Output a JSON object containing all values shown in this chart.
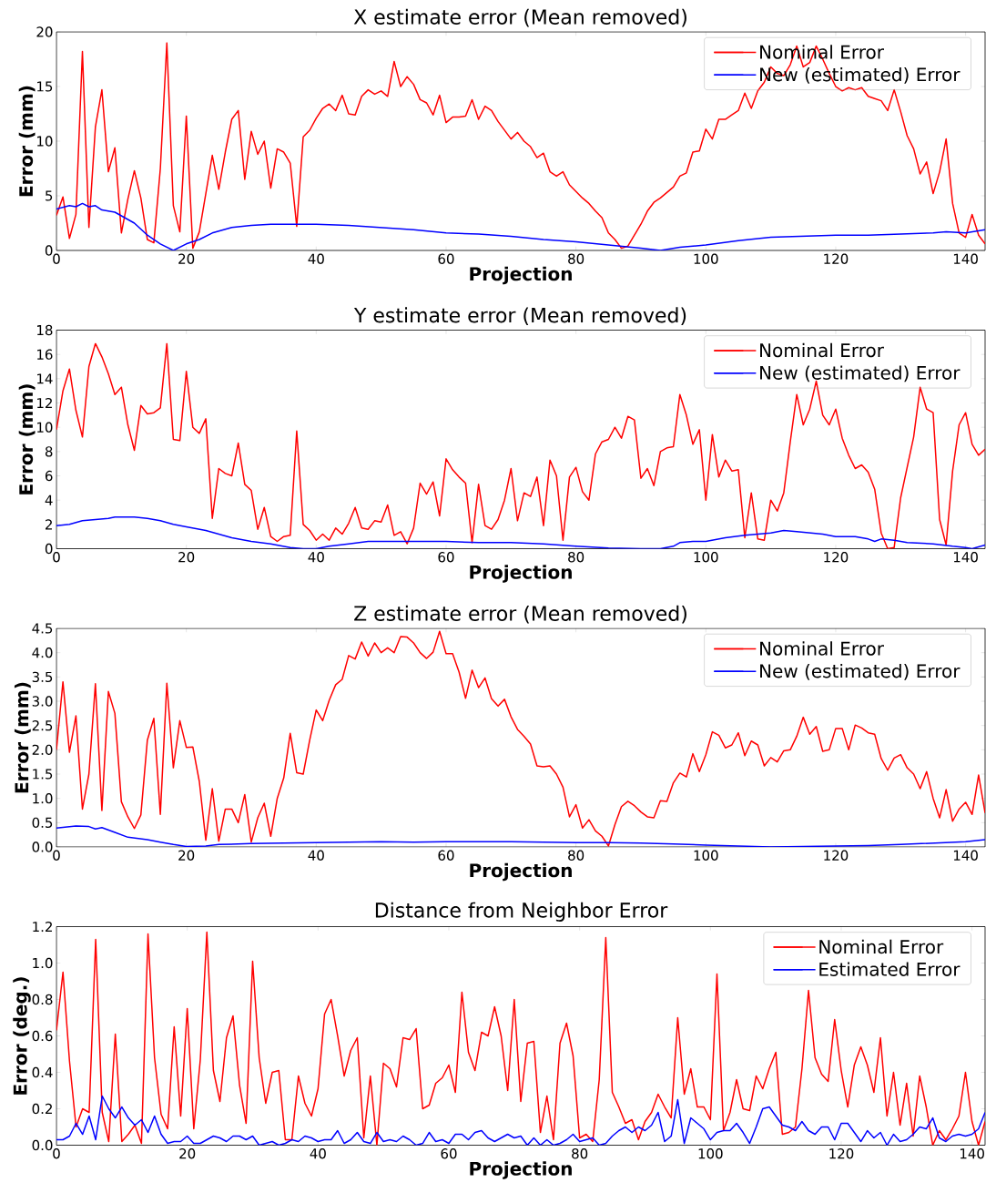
{
  "chart_data": [
    {
      "type": "line",
      "title": "X estimate error (Mean removed)",
      "xlabel": "Projection",
      "ylabel": "Error (mm)",
      "xlim": [
        0,
        143
      ],
      "ylim": [
        0,
        20
      ],
      "xticks": [
        0,
        20,
        40,
        60,
        80,
        100,
        120,
        140
      ],
      "yticks": [
        0,
        5,
        10,
        15,
        20
      ],
      "legend": "top right",
      "x": [
        0,
        1,
        2,
        3,
        4,
        5,
        6,
        7,
        8,
        9,
        10,
        11,
        12,
        13,
        14,
        15,
        16,
        17,
        18,
        19,
        20,
        21,
        22,
        23,
        24,
        25,
        26,
        27,
        28,
        29,
        30,
        31,
        32,
        33,
        34,
        35,
        36,
        37,
        38,
        39,
        40,
        41,
        42,
        43,
        44,
        45,
        46,
        47,
        48,
        49,
        50,
        51,
        52,
        53,
        54,
        55,
        56,
        57,
        58,
        59,
        60,
        61,
        62,
        63,
        64,
        65,
        66,
        67,
        68,
        69,
        70,
        71,
        72,
        73,
        74,
        75,
        76,
        77,
        78,
        79,
        80,
        81,
        82,
        83,
        84,
        85,
        86,
        87,
        88,
        89,
        90,
        91,
        92,
        93,
        94,
        95,
        96,
        97,
        98,
        99,
        100,
        101,
        102,
        103,
        104,
        105,
        106,
        107,
        108,
        109,
        110,
        111,
        112,
        113,
        114,
        115,
        116,
        117,
        118,
        119,
        120,
        121,
        122,
        123,
        124,
        125,
        126,
        127,
        128,
        129,
        130,
        131,
        132,
        133,
        134,
        135,
        136,
        137,
        138,
        139,
        140,
        141,
        142,
        143
      ],
      "series": [
        {
          "name": "Nominal Error",
          "color": "#ff0000",
          "values": [
            3.2,
            4.9,
            1.1,
            3.3,
            18.2,
            2.1,
            11.3,
            14.7,
            7.2,
            9.4,
            1.6,
            4.7,
            7.3,
            4.8,
            1.0,
            0.7,
            7.5,
            19.0,
            4.1,
            1.7,
            12.3,
            0.2,
            1.7,
            5.2,
            8.7,
            5.6,
            9.0,
            12.0,
            12.8,
            6.5,
            10.9,
            8.8,
            10.0,
            5.7,
            9.3,
            9.0,
            8.0,
            2.2,
            10.4,
            11.0,
            12.1,
            13.0,
            13.4,
            12.8,
            14.2,
            12.5,
            12.4,
            14.1,
            14.7,
            14.3,
            14.6,
            14.1,
            17.3,
            15.0,
            15.9,
            15.2,
            13.8,
            13.5,
            12.4,
            14.2,
            11.7,
            12.2,
            12.2,
            12.3,
            13.8,
            12.0,
            13.2,
            12.8,
            11.8,
            11.0,
            10.2,
            10.8,
            10.0,
            9.5,
            8.5,
            8.9,
            7.2,
            6.8,
            7.2,
            6.0,
            5.4,
            4.8,
            4.3,
            3.6,
            3.0,
            1.6,
            1.0,
            0.2,
            0.4,
            1.4,
            2.4,
            3.6,
            4.4,
            4.8,
            5.3,
            5.8,
            6.8,
            7.1,
            9.0,
            9.1,
            11.1,
            10.2,
            12.0,
            12.0,
            12.4,
            12.8,
            14.4,
            13.0,
            14.6,
            15.4,
            16.8,
            16.2,
            16.0,
            17.0,
            18.7,
            16.8,
            17.2,
            18.7,
            17.5,
            16.2,
            15.0,
            14.6,
            14.9,
            14.7,
            14.9,
            14.1,
            13.9,
            13.7,
            12.8,
            14.7,
            12.7,
            10.5,
            9.3,
            7.0,
            8.1,
            5.2,
            7.2,
            10.2,
            4.3,
            1.6,
            1.2,
            3.3,
            1.4,
            0.6
          ]
        },
        {
          "name": "New (estimated) Error",
          "color": "#0000ff",
          "x": [
            0,
            2,
            3,
            4,
            5,
            6,
            7,
            9,
            12,
            14,
            16,
            18,
            20,
            22,
            24,
            27,
            30,
            33,
            37,
            40,
            45,
            50,
            55,
            60,
            65,
            70,
            75,
            80,
            85,
            90,
            93,
            96,
            100,
            105,
            110,
            115,
            120,
            125,
            130,
            135,
            137,
            140,
            143
          ],
          "values": [
            3.8,
            4.1,
            4.0,
            4.3,
            4.0,
            4.1,
            3.7,
            3.5,
            2.5,
            1.4,
            0.6,
            0.0,
            0.6,
            1.0,
            1.6,
            2.1,
            2.3,
            2.4,
            2.4,
            2.4,
            2.3,
            2.1,
            1.9,
            1.6,
            1.5,
            1.3,
            1.0,
            0.8,
            0.5,
            0.2,
            0.0,
            0.3,
            0.5,
            0.9,
            1.2,
            1.3,
            1.4,
            1.4,
            1.5,
            1.6,
            1.7,
            1.6,
            1.9
          ]
        }
      ]
    },
    {
      "type": "line",
      "title": "Y estimate error (Mean removed)",
      "xlabel": "Projection",
      "ylabel": "Error (mm)",
      "xlim": [
        0,
        143
      ],
      "ylim": [
        0,
        18
      ],
      "xticks": [
        0,
        20,
        40,
        60,
        80,
        100,
        120,
        140
      ],
      "yticks": [
        0,
        2,
        4,
        6,
        8,
        10,
        12,
        14,
        16,
        18
      ],
      "legend": "top right",
      "x": [
        0,
        1,
        2,
        3,
        4,
        5,
        6,
        7,
        8,
        9,
        10,
        11,
        12,
        13,
        14,
        15,
        16,
        17,
        18,
        19,
        20,
        21,
        22,
        23,
        24,
        25,
        26,
        27,
        28,
        29,
        30,
        31,
        32,
        33,
        34,
        35,
        36,
        37,
        38,
        39,
        40,
        41,
        42,
        43,
        44,
        45,
        46,
        47,
        48,
        49,
        50,
        51,
        52,
        53,
        54,
        55,
        56,
        57,
        58,
        59,
        60,
        61,
        62,
        63,
        64,
        65,
        66,
        67,
        68,
        69,
        70,
        71,
        72,
        73,
        74,
        75,
        76,
        77,
        78,
        79,
        80,
        81,
        82,
        83,
        84,
        85,
        86,
        87,
        88,
        89,
        90,
        91,
        92,
        93,
        94,
        95,
        96,
        97,
        98,
        99,
        100,
        101,
        102,
        103,
        104,
        105,
        106,
        107,
        108,
        109,
        110,
        111,
        112,
        113,
        114,
        115,
        116,
        117,
        118,
        119,
        120,
        121,
        122,
        123,
        124,
        125,
        126,
        127,
        128,
        129,
        130,
        131,
        132,
        133,
        134,
        135,
        136,
        137,
        138,
        139,
        140,
        141,
        142,
        143
      ],
      "series": [
        {
          "name": "Nominal Error",
          "color": "#ff0000",
          "values": [
            9.8,
            13.0,
            14.8,
            11.4,
            9.2,
            15.0,
            16.9,
            15.8,
            14.4,
            12.7,
            13.3,
            10.2,
            8.1,
            11.8,
            11.1,
            11.2,
            11.6,
            16.9,
            9.0,
            8.9,
            14.6,
            10.0,
            9.5,
            10.7,
            2.5,
            6.6,
            6.2,
            6.0,
            8.7,
            5.3,
            4.8,
            1.6,
            3.4,
            1.0,
            0.6,
            1.0,
            1.1,
            9.7,
            2.0,
            1.5,
            0.7,
            1.2,
            0.7,
            1.7,
            1.2,
            2.1,
            3.4,
            1.7,
            1.6,
            2.3,
            2.2,
            3.6,
            1.1,
            1.4,
            0.4,
            1.7,
            5.4,
            4.5,
            5.5,
            2.7,
            7.4,
            6.5,
            5.9,
            5.4,
            0.5,
            5.3,
            1.9,
            1.6,
            2.4,
            4.0,
            6.6,
            2.3,
            4.6,
            4.3,
            5.9,
            1.9,
            7.3,
            6.0,
            0.7,
            5.9,
            6.7,
            4.7,
            4.0,
            7.8,
            8.8,
            9.0,
            10.0,
            9.1,
            10.9,
            10.6,
            5.8,
            6.6,
            5.2,
            8.0,
            8.3,
            8.4,
            12.7,
            11.0,
            8.6,
            9.8,
            4.0,
            9.4,
            5.9,
            7.3,
            6.4,
            6.5,
            0.9,
            4.6,
            0.8,
            0.7,
            4.0,
            3.1,
            4.6,
            8.8,
            12.7,
            10.2,
            11.5,
            13.8,
            11.0,
            10.2,
            11.5,
            9.1,
            7.7,
            6.6,
            6.9,
            6.3,
            4.9,
            1.3,
            0.0,
            0.1,
            4.2,
            6.7,
            9.2,
            13.3,
            11.5,
            11.2,
            2.4,
            0.3,
            6.4,
            10.2,
            11.2,
            8.6,
            7.7,
            8.2
          ]
        },
        {
          "name": "New (estimated) Error",
          "color": "#0000ff",
          "x": [
            0,
            2,
            4,
            6,
            8,
            9,
            12,
            14,
            16,
            18,
            20,
            23,
            25,
            27,
            30,
            33,
            36,
            38,
            40,
            42,
            45,
            48,
            50,
            55,
            60,
            65,
            70,
            75,
            80,
            85,
            90,
            93,
            95,
            96,
            98,
            100,
            103,
            106,
            108,
            110,
            112,
            114,
            116,
            118,
            120,
            123,
            125,
            126,
            127,
            129,
            131,
            135,
            138,
            140,
            141,
            143
          ],
          "values": [
            1.9,
            2.0,
            2.3,
            2.4,
            2.5,
            2.6,
            2.6,
            2.5,
            2.3,
            2.0,
            1.8,
            1.5,
            1.2,
            0.9,
            0.6,
            0.4,
            0.1,
            0.0,
            0.0,
            0.2,
            0.4,
            0.6,
            0.6,
            0.6,
            0.6,
            0.5,
            0.5,
            0.4,
            0.2,
            0.05,
            0.0,
            0.0,
            0.2,
            0.5,
            0.6,
            0.6,
            0.9,
            1.1,
            1.2,
            1.3,
            1.5,
            1.4,
            1.3,
            1.2,
            1.0,
            1.0,
            0.8,
            0.6,
            0.8,
            0.7,
            0.5,
            0.4,
            0.2,
            0.1,
            0.0,
            0.3
          ]
        }
      ]
    },
    {
      "type": "line",
      "title": "Z estimate error (Mean removed)",
      "xlabel": "Projection",
      "ylabel": "Error (mm)",
      "xlim": [
        0,
        143
      ],
      "ylim": [
        0,
        4.5
      ],
      "xticks": [
        0,
        20,
        40,
        60,
        80,
        100,
        120,
        140
      ],
      "yticks": [
        {
          "value": 0,
          "label": "0.0"
        },
        0.5,
        {
          "value": 1,
          "label": "1.0"
        },
        1.5,
        {
          "value": 2,
          "label": "2.0"
        },
        2.5,
        {
          "value": 3,
          "label": "3.0"
        },
        3.5,
        {
          "value": 4,
          "label": "4.0"
        },
        4.5
      ],
      "legend": "top right",
      "x": [
        0,
        1,
        2,
        3,
        4,
        5,
        6,
        7,
        8,
        9,
        10,
        11,
        12,
        13,
        14,
        15,
        16,
        17,
        18,
        19,
        20,
        21,
        22,
        23,
        24,
        25,
        26,
        27,
        28,
        29,
        30,
        31,
        32,
        33,
        34,
        35,
        36,
        37,
        38,
        39,
        40,
        41,
        42,
        43,
        44,
        45,
        46,
        47,
        48,
        49,
        50,
        51,
        52,
        53,
        54,
        55,
        56,
        57,
        58,
        59,
        60,
        61,
        62,
        63,
        64,
        65,
        66,
        67,
        68,
        69,
        70,
        71,
        72,
        73,
        74,
        75,
        76,
        77,
        78,
        79,
        80,
        81,
        82,
        83,
        84,
        85,
        86,
        87,
        88,
        89,
        90,
        91,
        92,
        93,
        94,
        95,
        96,
        97,
        98,
        99,
        100,
        101,
        102,
        103,
        104,
        105,
        106,
        107,
        108,
        109,
        110,
        111,
        112,
        113,
        114,
        115,
        116,
        117,
        118,
        119,
        120,
        121,
        122,
        123,
        124,
        125,
        126,
        127,
        128,
        129,
        130,
        131,
        132,
        133,
        134,
        135,
        136,
        137,
        138,
        139,
        140,
        141,
        142,
        143
      ],
      "series": [
        {
          "name": "Nominal Error",
          "color": "#ff0000",
          "values": [
            2.0,
            3.4,
            1.95,
            2.7,
            0.78,
            1.5,
            3.36,
            0.75,
            3.2,
            2.75,
            0.93,
            0.62,
            0.38,
            0.66,
            2.2,
            2.65,
            0.67,
            3.37,
            1.63,
            2.6,
            2.05,
            2.06,
            1.35,
            0.14,
            1.2,
            0.12,
            0.78,
            0.78,
            0.5,
            1.08,
            0.1,
            0.6,
            0.9,
            0.22,
            1.0,
            1.42,
            2.34,
            1.53,
            1.5,
            2.2,
            2.82,
            2.6,
            3.02,
            3.34,
            3.45,
            3.94,
            3.87,
            4.22,
            3.93,
            4.2,
            4.0,
            4.1,
            4.0,
            4.33,
            4.32,
            4.2,
            4.0,
            3.88,
            4.01,
            4.44,
            3.98,
            3.98,
            3.6,
            3.06,
            3.64,
            3.28,
            3.48,
            3.05,
            2.9,
            3.04,
            2.68,
            2.42,
            2.28,
            2.12,
            1.67,
            1.65,
            1.67,
            1.5,
            1.23,
            0.62,
            0.87,
            0.39,
            0.56,
            0.33,
            0.22,
            0.02,
            0.46,
            0.83,
            0.94,
            0.85,
            0.72,
            0.62,
            0.6,
            0.95,
            0.94,
            1.32,
            1.52,
            1.44,
            1.92,
            1.55,
            1.9,
            2.37,
            2.3,
            2.04,
            2.1,
            2.35,
            1.88,
            2.18,
            2.1,
            1.67,
            1.84,
            1.75,
            1.98,
            2.0,
            2.28,
            2.67,
            2.32,
            2.48,
            1.97,
            2.0,
            2.44,
            2.44,
            2.0,
            2.51,
            2.45,
            2.35,
            2.32,
            1.82,
            1.58,
            1.83,
            1.9,
            1.63,
            1.5,
            1.2,
            1.55,
            1.0,
            0.6,
            1.18,
            0.53,
            0.78,
            0.92,
            0.67,
            1.48,
            0.7
          ]
        },
        {
          "name": "New (estimated) Error",
          "color": "#0000ff",
          "x": [
            0,
            3,
            5,
            6,
            7,
            9,
            11,
            14,
            16,
            18,
            20,
            23,
            25,
            30,
            35,
            40,
            45,
            50,
            55,
            60,
            65,
            70,
            75,
            80,
            85,
            90,
            95,
            100,
            105,
            110,
            115,
            120,
            125,
            130,
            135,
            140,
            143
          ],
          "values": [
            0.39,
            0.43,
            0.42,
            0.37,
            0.4,
            0.3,
            0.2,
            0.15,
            0.1,
            0.05,
            0.01,
            0.02,
            0.05,
            0.07,
            0.08,
            0.09,
            0.1,
            0.11,
            0.1,
            0.11,
            0.11,
            0.11,
            0.1,
            0.09,
            0.09,
            0.08,
            0.06,
            0.04,
            0.02,
            0.0,
            0.01,
            0.02,
            0.03,
            0.05,
            0.08,
            0.11,
            0.15
          ]
        }
      ]
    },
    {
      "type": "line",
      "title": "Distance from Neighbor Error",
      "xlabel": "Projection",
      "ylabel": "Error (deg.)",
      "xlim": [
        0,
        142
      ],
      "ylim": [
        0,
        1.2
      ],
      "xticks": [
        0,
        20,
        40,
        60,
        80,
        100,
        120,
        140
      ],
      "yticks": [
        {
          "value": 0,
          "label": "0.0"
        },
        0.2,
        0.4,
        0.6,
        0.8,
        {
          "value": 1,
          "label": "1.0"
        },
        1.2
      ],
      "legend": "top right",
      "x": [
        0,
        1,
        2,
        3,
        4,
        5,
        6,
        7,
        8,
        9,
        10,
        11,
        12,
        13,
        14,
        15,
        16,
        17,
        18,
        19,
        20,
        21,
        22,
        23,
        24,
        25,
        26,
        27,
        28,
        29,
        30,
        31,
        32,
        33,
        34,
        35,
        36,
        37,
        38,
        39,
        40,
        41,
        42,
        43,
        44,
        45,
        46,
        47,
        48,
        49,
        50,
        51,
        52,
        53,
        54,
        55,
        56,
        57,
        58,
        59,
        60,
        61,
        62,
        63,
        64,
        65,
        66,
        67,
        68,
        69,
        70,
        71,
        72,
        73,
        74,
        75,
        76,
        77,
        78,
        79,
        80,
        81,
        82,
        83,
        84,
        85,
        86,
        87,
        88,
        89,
        90,
        91,
        92,
        93,
        94,
        95,
        96,
        97,
        98,
        99,
        100,
        101,
        102,
        103,
        104,
        105,
        106,
        107,
        108,
        109,
        110,
        111,
        112,
        113,
        114,
        115,
        116,
        117,
        118,
        119,
        120,
        121,
        122,
        123,
        124,
        125,
        126,
        127,
        128,
        129,
        130,
        131,
        132,
        133,
        134,
        135,
        136,
        137,
        138,
        139,
        140,
        141,
        142
      ],
      "series": [
        {
          "name": "Nominal Error",
          "color": "#ff0000",
          "values": [
            0.63,
            0.95,
            0.46,
            0.1,
            0.2,
            0.18,
            1.13,
            0.18,
            0.02,
            0.61,
            0.02,
            0.06,
            0.11,
            0.01,
            1.16,
            0.48,
            0.17,
            0.09,
            0.65,
            0.16,
            0.75,
            0.09,
            0.47,
            1.17,
            0.41,
            0.24,
            0.59,
            0.71,
            0.33,
            0.12,
            1.01,
            0.48,
            0.23,
            0.4,
            0.41,
            0.03,
            0.03,
            0.38,
            0.23,
            0.16,
            0.31,
            0.72,
            0.8,
            0.6,
            0.38,
            0.52,
            0.59,
            0.04,
            0.38,
            0.0,
            0.45,
            0.42,
            0.32,
            0.59,
            0.58,
            0.64,
            0.2,
            0.22,
            0.34,
            0.37,
            0.44,
            0.29,
            0.84,
            0.51,
            0.41,
            0.62,
            0.6,
            0.76,
            0.6,
            0.3,
            0.8,
            0.24,
            0.56,
            0.57,
            0.07,
            0.27,
            0.03,
            0.56,
            0.67,
            0.49,
            0.04,
            0.06,
            0.02,
            0.36,
            1.14,
            0.29,
            0.21,
            0.12,
            0.14,
            0.03,
            0.13,
            0.18,
            0.28,
            0.21,
            0.15,
            0.7,
            0.28,
            0.42,
            0.21,
            0.21,
            0.14,
            0.94,
            0.08,
            0.18,
            0.36,
            0.2,
            0.19,
            0.38,
            0.31,
            0.42,
            0.51,
            0.06,
            0.07,
            0.1,
            0.42,
            0.85,
            0.48,
            0.39,
            0.35,
            0.69,
            0.41,
            0.21,
            0.44,
            0.54,
            0.44,
            0.29,
            0.59,
            0.16,
            0.4,
            0.11,
            0.34,
            0.05,
            0.38,
            0.21,
            0.0,
            0.08,
            0.03,
            0.09,
            0.16,
            0.4,
            0.13,
            0.0,
            0.13
          ]
        },
        {
          "name": "Estimated Error",
          "color": "#0000ff",
          "values": [
            0.03,
            0.03,
            0.05,
            0.12,
            0.06,
            0.16,
            0.03,
            0.27,
            0.2,
            0.15,
            0.21,
            0.15,
            0.11,
            0.14,
            0.07,
            0.16,
            0.06,
            0.01,
            0.02,
            0.02,
            0.05,
            0.01,
            0.01,
            0.03,
            0.05,
            0.04,
            0.02,
            0.05,
            0.05,
            0.03,
            0.05,
            0.0,
            0.01,
            0.02,
            0.0,
            0.01,
            0.03,
            0.02,
            0.05,
            0.04,
            0.02,
            0.03,
            0.03,
            0.08,
            0.01,
            0.03,
            0.07,
            0.02,
            0.01,
            0.07,
            0.02,
            0.03,
            0.02,
            0.05,
            0.03,
            0.0,
            0.01,
            0.07,
            0.02,
            0.03,
            0.01,
            0.06,
            0.06,
            0.03,
            0.07,
            0.08,
            0.04,
            0.02,
            0.04,
            0.06,
            0.04,
            0.05,
            0.0,
            0.04,
            0.0,
            0.03,
            0.0,
            0.01,
            0.03,
            0.06,
            0.02,
            0.03,
            0.04,
            0.0,
            0.01,
            0.05,
            0.08,
            0.1,
            0.07,
            0.1,
            0.08,
            0.11,
            0.18,
            0.02,
            0.05,
            0.25,
            0.01,
            0.15,
            0.12,
            0.09,
            0.03,
            0.07,
            0.08,
            0.08,
            0.12,
            0.07,
            0.01,
            0.1,
            0.2,
            0.21,
            0.16,
            0.11,
            0.1,
            0.08,
            0.13,
            0.08,
            0.06,
            0.1,
            0.1,
            0.03,
            0.12,
            0.12,
            0.07,
            0.02,
            0.08,
            0.04,
            0.07,
            0.0,
            0.06,
            0.02,
            0.03,
            0.06,
            0.1,
            0.09,
            0.15,
            0.04,
            0.02,
            0.05,
            0.06,
            0.05,
            0.06,
            0.09,
            0.18
          ]
        }
      ]
    }
  ]
}
